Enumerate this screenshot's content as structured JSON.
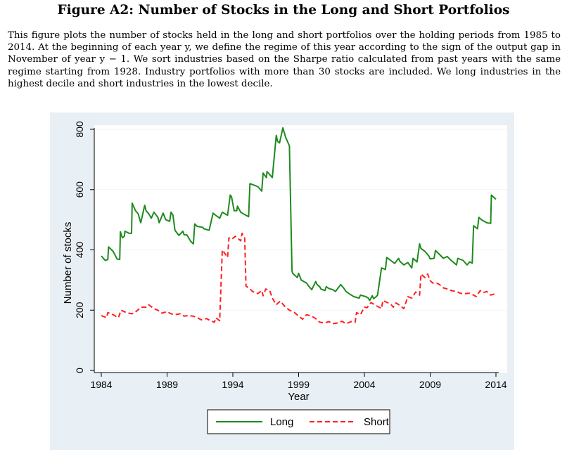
{
  "figure": {
    "title": "Figure A2: Number of Stocks in the Long and Short Portfolios",
    "caption": "This figure plots the number of stocks held in the long and short portfolios over the holding periods from 1985 to 2014. At the beginning of each year y, we define the regime of this year according to the sign of the output gap in November of year y − 1. We sort industries based on the Sharpe ratio calculated from past years with the same regime starting from 1928. Industry portfolios with more than 30 stocks are included. We long industries in the highest decile and short industries in the lowest decile."
  },
  "colors": {
    "long": "#1e8a1e",
    "short": "#ff2020",
    "panel_bg": "#e9f0f5",
    "plot_bg": "#ffffff"
  },
  "chart_data": {
    "type": "line",
    "title": "",
    "xlabel": "Year",
    "ylabel": "Number of stocks",
    "xlim": [
      1984,
      2014
    ],
    "ylim": [
      0,
      800
    ],
    "xticks": [
      1984,
      1989,
      1994,
      1999,
      2004,
      2009,
      2014
    ],
    "yticks": [
      0,
      200,
      400,
      600,
      800
    ],
    "grid": "horizontal",
    "legend": "bottom",
    "series": [
      {
        "name": "Long",
        "style": "solid",
        "x": [
          1984.0,
          1984.3,
          1984.5,
          1984.55,
          1984.9,
          1985.2,
          1985.4,
          1985.45,
          1985.6,
          1985.75,
          1985.8,
          1986.1,
          1986.3,
          1986.35,
          1986.6,
          1986.8,
          1986.9,
          1987.0,
          1987.3,
          1987.4,
          1987.6,
          1987.8,
          1988.0,
          1988.3,
          1988.4,
          1988.7,
          1988.9,
          1989.2,
          1989.3,
          1989.45,
          1989.6,
          1989.9,
          1990.2,
          1990.3,
          1990.5,
          1990.8,
          1991.0,
          1991.1,
          1991.3,
          1991.7,
          1991.8,
          1992.2,
          1992.5,
          1992.6,
          1993.0,
          1993.2,
          1993.6,
          1993.8,
          1993.9,
          1994.1,
          1994.3,
          1994.35,
          1994.6,
          1994.9,
          1995.2,
          1995.3,
          1995.9,
          1996.2,
          1996.3,
          1996.55,
          1996.6,
          1997.0,
          1997.3,
          1997.4,
          1997.55,
          1997.8,
          1998.0,
          1998.3,
          1998.5,
          1998.55,
          1998.9,
          1999.0,
          1999.2,
          1999.6,
          1999.8,
          2000.0,
          2000.3,
          2000.4,
          2000.6,
          2000.7,
          2001.0,
          2001.1,
          2001.3,
          2001.6,
          2001.8,
          2002.2,
          2002.4,
          2002.6,
          2003.0,
          2003.2,
          2003.6,
          2003.7,
          2004.1,
          2004.3,
          2004.4,
          2004.6,
          2004.7,
          2004.9,
          2005.0,
          2005.3,
          2005.6,
          2005.7,
          2006.0,
          2006.3,
          2006.6,
          2006.7,
          2007.0,
          2007.3,
          2007.6,
          2007.7,
          2008.0,
          2008.2,
          2008.3,
          2008.6,
          2008.9,
          2009.0,
          2009.3,
          2009.4,
          2009.7,
          2010.0,
          2010.3,
          2010.6,
          2011.0,
          2011.1,
          2011.5,
          2011.8,
          2012.0,
          2012.2,
          2012.3,
          2012.6,
          2012.7,
          2012.9,
          2013.3,
          2013.6,
          2013.65,
          2014.0
        ],
        "y": [
          380,
          365,
          368,
          410,
          395,
          370,
          368,
          460,
          440,
          445,
          462,
          455,
          455,
          555,
          530,
          520,
          505,
          490,
          548,
          530,
          520,
          505,
          525,
          508,
          490,
          522,
          500,
          495,
          525,
          515,
          465,
          448,
          462,
          450,
          450,
          428,
          420,
          486,
          478,
          475,
          470,
          465,
          522,
          518,
          505,
          525,
          515,
          582,
          576,
          530,
          530,
          545,
          525,
          517,
          510,
          620,
          610,
          595,
          655,
          640,
          660,
          640,
          780,
          760,
          755,
          805,
          775,
          745,
          330,
          322,
          308,
          322,
          300,
          290,
          278,
          268,
          295,
          285,
          278,
          270,
          265,
          278,
          272,
          268,
          262,
          285,
          275,
          262,
          250,
          245,
          240,
          250,
          245,
          240,
          232,
          248,
          238,
          245,
          250,
          340,
          335,
          375,
          365,
          355,
          372,
          362,
          350,
          358,
          340,
          372,
          360,
          420,
          405,
          395,
          380,
          370,
          372,
          398,
          385,
          372,
          378,
          365,
          350,
          372,
          365,
          350,
          360,
          356,
          480,
          470,
          508,
          500,
          490,
          488,
          582,
          568
        ]
      },
      {
        "name": "Short",
        "style": "dashed",
        "x": [
          1984.0,
          1984.4,
          1984.5,
          1984.9,
          1985.3,
          1985.5,
          1985.9,
          1986.3,
          1986.5,
          1986.9,
          1987.0,
          1987.4,
          1987.6,
          1988.0,
          1988.3,
          1988.6,
          1989.0,
          1989.3,
          1989.6,
          1990.0,
          1990.3,
          1990.6,
          1991.0,
          1991.3,
          1991.6,
          1992.0,
          1992.3,
          1992.6,
          1992.7,
          1993.0,
          1993.2,
          1993.6,
          1993.7,
          1993.9,
          1994.2,
          1994.6,
          1994.7,
          1994.9,
          1995.0,
          1995.3,
          1995.5,
          1995.9,
          1996.2,
          1996.3,
          1996.5,
          1996.8,
          1997.0,
          1997.3,
          1997.6,
          1997.8,
          1998.0,
          1998.3,
          1998.7,
          1999.0,
          1999.3,
          1999.6,
          2000.0,
          2000.3,
          2000.6,
          2001.0,
          2001.3,
          2001.6,
          2002.0,
          2002.3,
          2002.6,
          2003.0,
          2003.3,
          2003.4,
          2003.7,
          2004.0,
          2004.2,
          2004.5,
          2004.9,
          2005.3,
          2005.4,
          2005.7,
          2006.0,
          2006.2,
          2006.4,
          2006.7,
          2007.0,
          2007.3,
          2007.6,
          2007.9,
          2008.2,
          2008.3,
          2008.6,
          2008.8,
          2009.0,
          2009.2,
          2009.5,
          2009.7,
          2010.0,
          2010.3,
          2010.6,
          2011.0,
          2011.3,
          2011.6,
          2012.0,
          2012.3,
          2012.5,
          2012.8,
          2013.0,
          2013.3,
          2013.6,
          2014.0
        ],
        "y": [
          182,
          175,
          192,
          185,
          175,
          200,
          192,
          188,
          190,
          205,
          210,
          210,
          218,
          205,
          200,
          190,
          195,
          188,
          185,
          188,
          180,
          182,
          180,
          175,
          168,
          172,
          165,
          160,
          175,
          165,
          400,
          375,
          440,
          435,
          445,
          430,
          455,
          440,
          280,
          270,
          262,
          255,
          265,
          248,
          270,
          265,
          240,
          218,
          230,
          220,
          210,
          200,
          192,
          180,
          170,
          185,
          180,
          172,
          160,
          158,
          162,
          155,
          158,
          163,
          155,
          162,
          160,
          192,
          185,
          210,
          208,
          225,
          215,
          205,
          232,
          226,
          220,
          210,
          224,
          216,
          205,
          245,
          240,
          260,
          250,
          320,
          308,
          320,
          298,
          290,
          290,
          285,
          274,
          270,
          265,
          262,
          256,
          255,
          256,
          250,
          245,
          265,
          258,
          262,
          250,
          255
        ]
      }
    ]
  }
}
